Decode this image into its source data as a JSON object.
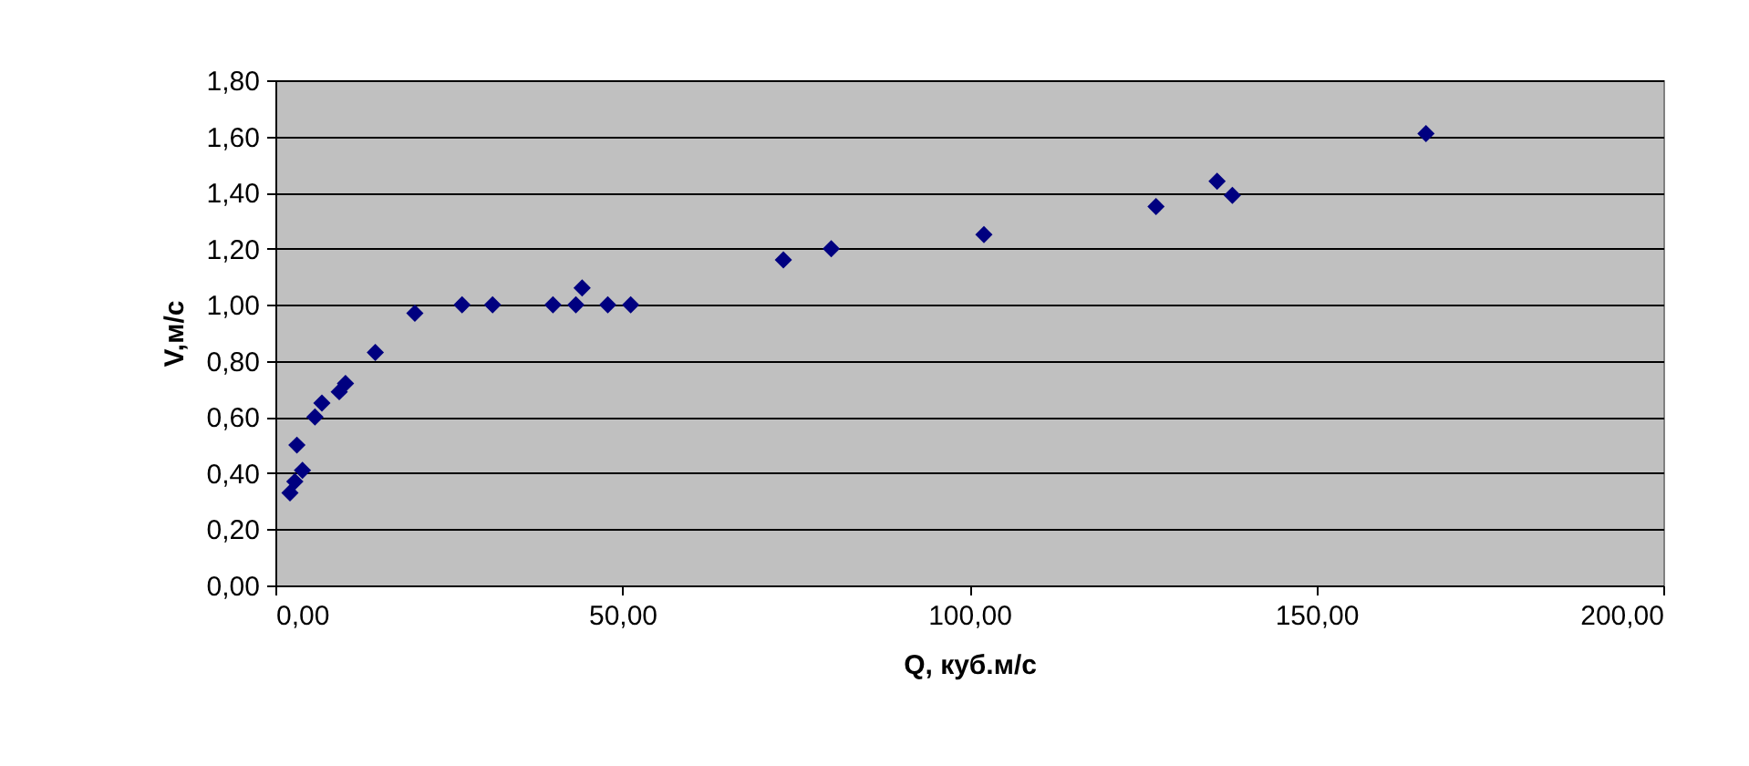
{
  "chart_data": {
    "type": "scatter",
    "xlabel": "Q,  куб.м/с",
    "ylabel": "V,м/с",
    "x": [
      2.1,
      2.8,
      3.9,
      3.1,
      5.7,
      6.7,
      9.2,
      10.1,
      14.4,
      20.1,
      26.9,
      31.3,
      40.0,
      43.3,
      44.2,
      47.9,
      51.2,
      73.2,
      80.1,
      102.1,
      126.9,
      135.7,
      137.9,
      165.8
    ],
    "values": [
      0.33,
      0.37,
      0.41,
      0.5,
      0.6,
      0.65,
      0.69,
      0.72,
      0.83,
      0.97,
      1.0,
      1.0,
      1.0,
      1.0,
      1.06,
      1.0,
      1.0,
      1.16,
      1.2,
      1.25,
      1.35,
      1.44,
      1.39,
      1.61
    ],
    "color": "#000080",
    "marker": "diamond",
    "grid": "y",
    "xlim": [
      0,
      200
    ],
    "xticks": [
      {
        "value": 0,
        "label": "0,00"
      },
      {
        "value": 50,
        "label": "50,00"
      },
      {
        "value": 100,
        "label": "100,00"
      },
      {
        "value": 150,
        "label": "150,00"
      },
      {
        "value": 200,
        "label": "200,00"
      }
    ],
    "ylim": [
      0,
      1.8
    ],
    "yticks": [
      {
        "value": 0,
        "label": "0,00"
      },
      {
        "value": 0.2,
        "label": "0,20"
      },
      {
        "value": 0.4,
        "label": "0,40"
      },
      {
        "value": 0.6,
        "label": "0,60"
      },
      {
        "value": 0.8,
        "label": "0,80"
      },
      {
        "value": 1.0,
        "label": "1,00"
      },
      {
        "value": 1.2,
        "label": "1,20"
      },
      {
        "value": 1.4,
        "label": "1,40"
      },
      {
        "value": 1.6,
        "label": "1,60"
      },
      {
        "value": 1.8,
        "label": "1,80"
      }
    ]
  }
}
